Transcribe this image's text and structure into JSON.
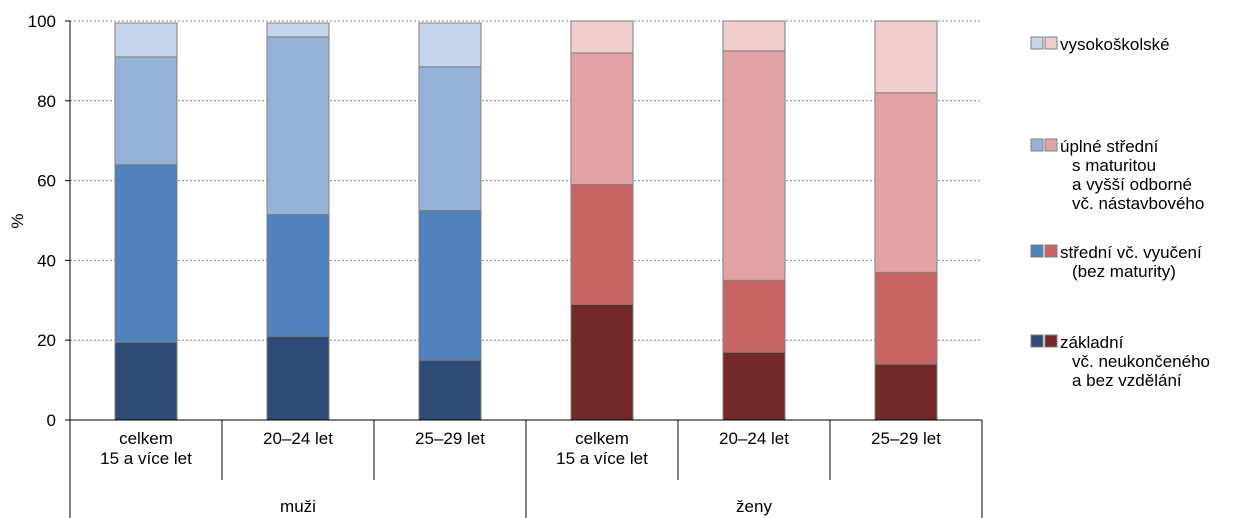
{
  "chart_data": {
    "type": "bar",
    "stacked": true,
    "ylabel": "%",
    "ylim": [
      0,
      100
    ],
    "yticks": [
      "0",
      "20",
      "40",
      "60",
      "80",
      "100"
    ],
    "grid": true,
    "legend_position": "right",
    "categories": [
      {
        "lines": [
          "celkem",
          "15 a více let"
        ],
        "group": "muži"
      },
      {
        "lines": [
          "20–24 let"
        ],
        "group": "muži"
      },
      {
        "lines": [
          "25–29 let"
        ],
        "group": "muži"
      },
      {
        "lines": [
          "celkem",
          "15 a více let"
        ],
        "group": "ženy"
      },
      {
        "lines": [
          "20–24 let"
        ],
        "group": "ženy"
      },
      {
        "lines": [
          "25–29 let"
        ],
        "group": "ženy"
      }
    ],
    "groups": [
      "muži",
      "ženy"
    ],
    "series": [
      {
        "name": "základní vč. neukončeného a bez vzdělání",
        "values": [
          19.5,
          21,
          15,
          29,
          17,
          14
        ]
      },
      {
        "name": "střední vč. vyučení (bez maturity)",
        "values": [
          44.5,
          30.5,
          37.5,
          30,
          18,
          23
        ]
      },
      {
        "name": "úplné střední s maturitou a vyšší odborné vč. nástavbového",
        "values": [
          27,
          44.5,
          36,
          33,
          57.5,
          45
        ]
      },
      {
        "name": "vysokoškolské",
        "values": [
          8.5,
          3.5,
          11,
          8,
          7.5,
          18
        ]
      }
    ],
    "colors": {
      "muži": [
        "#2e4a76",
        "#4f81bd",
        "#95b3d7",
        "#c5d5e9"
      ],
      "ženy": [
        "#722828",
        "#c86464",
        "#e0a2a2",
        "#f0cece"
      ]
    },
    "legend": [
      {
        "series_index": 3,
        "lines": [
          "vysokoškolské"
        ]
      },
      {
        "series_index": 2,
        "lines": [
          "úplné střední",
          "s maturitou",
          "a vyšší odborné",
          "vč. nástavbového"
        ]
      },
      {
        "series_index": 1,
        "lines": [
          "střední vč. vyučení",
          "(bez maturity)"
        ]
      },
      {
        "series_index": 0,
        "lines": [
          "základní",
          "vč. neukončeného",
          "a bez vzdělání"
        ]
      }
    ]
  }
}
